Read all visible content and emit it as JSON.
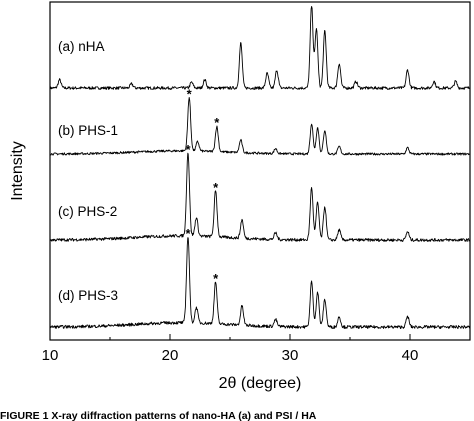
{
  "chart_data": {
    "type": "line",
    "xlabel": "2θ (degree)",
    "ylabel": "Intensity",
    "xlim": [
      10,
      45
    ],
    "x_ticks": [
      10,
      20,
      30,
      40
    ],
    "grid": false,
    "legend": "labels placed left of each trace",
    "caption": "FIGURE 1  X-ray diffraction patterns of nano-HA (a) and PSI / HA",
    "series": [
      {
        "name": "(a) nHA",
        "star_marker_2theta": [],
        "peaks": [
          {
            "x": 10.8,
            "h": 0.1
          },
          {
            "x": 16.8,
            "h": 0.05
          },
          {
            "x": 21.8,
            "h": 0.07
          },
          {
            "x": 22.9,
            "h": 0.1
          },
          {
            "x": 25.9,
            "h": 0.55
          },
          {
            "x": 28.1,
            "h": 0.18
          },
          {
            "x": 28.9,
            "h": 0.22
          },
          {
            "x": 31.8,
            "h": 1.0
          },
          {
            "x": 32.2,
            "h": 0.72
          },
          {
            "x": 32.9,
            "h": 0.7
          },
          {
            "x": 34.1,
            "h": 0.3
          },
          {
            "x": 35.5,
            "h": 0.08
          },
          {
            "x": 39.8,
            "h": 0.22
          },
          {
            "x": 42.0,
            "h": 0.08
          },
          {
            "x": 43.8,
            "h": 0.08
          }
        ]
      },
      {
        "name": "(b) PHS-1",
        "star_marker_2theta": [
          21.6,
          23.9
        ],
        "peaks": [
          {
            "x": 21.6,
            "h": 0.85
          },
          {
            "x": 22.3,
            "h": 0.15
          },
          {
            "x": 23.9,
            "h": 0.4
          },
          {
            "x": 25.9,
            "h": 0.2
          },
          {
            "x": 28.8,
            "h": 0.08
          },
          {
            "x": 31.8,
            "h": 0.48
          },
          {
            "x": 32.3,
            "h": 0.42
          },
          {
            "x": 32.9,
            "h": 0.38
          },
          {
            "x": 34.1,
            "h": 0.12
          },
          {
            "x": 39.8,
            "h": 0.1
          }
        ]
      },
      {
        "name": "(c) PHS-2",
        "star_marker_2theta": [
          21.5,
          23.8
        ],
        "peaks": [
          {
            "x": 21.5,
            "h": 1.0
          },
          {
            "x": 22.2,
            "h": 0.22
          },
          {
            "x": 23.8,
            "h": 0.55
          },
          {
            "x": 26.0,
            "h": 0.22
          },
          {
            "x": 28.8,
            "h": 0.08
          },
          {
            "x": 31.8,
            "h": 0.62
          },
          {
            "x": 32.3,
            "h": 0.45
          },
          {
            "x": 32.9,
            "h": 0.4
          },
          {
            "x": 34.1,
            "h": 0.12
          },
          {
            "x": 39.8,
            "h": 0.1
          }
        ]
      },
      {
        "name": "(d) PHS-3",
        "star_marker_2theta": [
          21.5,
          23.8
        ],
        "peaks": [
          {
            "x": 21.5,
            "h": 1.0
          },
          {
            "x": 22.2,
            "h": 0.18
          },
          {
            "x": 23.8,
            "h": 0.48
          },
          {
            "x": 26.0,
            "h": 0.22
          },
          {
            "x": 28.8,
            "h": 0.08
          },
          {
            "x": 31.8,
            "h": 0.52
          },
          {
            "x": 32.3,
            "h": 0.4
          },
          {
            "x": 32.9,
            "h": 0.32
          },
          {
            "x": 34.1,
            "h": 0.12
          },
          {
            "x": 39.8,
            "h": 0.12
          }
        ]
      }
    ]
  }
}
